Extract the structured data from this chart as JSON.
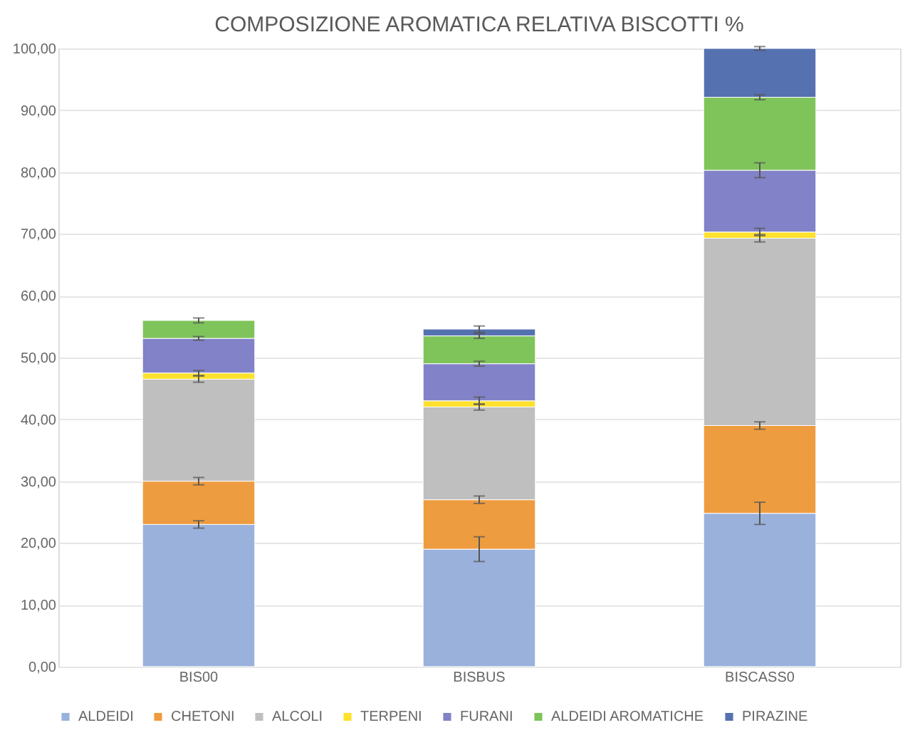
{
  "chart_data": {
    "type": "bar",
    "title": "COMPOSIZIONE AROMATICA RELATIVA BISCOTTI %",
    "stacked": true,
    "categories": [
      "BIS00",
      "BISBUS",
      "BISCASS0"
    ],
    "series": [
      {
        "name": "ALDEIDI",
        "color": "#9ab1dc",
        "values": [
          23.0,
          19.0,
          24.8
        ],
        "errors": [
          0.6,
          2.0,
          1.8
        ]
      },
      {
        "name": "CHETONI",
        "color": "#ee9c40",
        "values": [
          7.0,
          8.0,
          14.2
        ],
        "errors": [
          0.6,
          0.6,
          0.6
        ]
      },
      {
        "name": "ALCOLI",
        "color": "#bfbfbf",
        "values": [
          16.5,
          15.0,
          30.3
        ],
        "errors": [
          0.5,
          0.5,
          0.6
        ]
      },
      {
        "name": "TERPENI",
        "color": "#fde12c",
        "values": [
          1.0,
          1.0,
          1.0
        ],
        "errors": [
          0.4,
          0.6,
          0.6
        ]
      },
      {
        "name": "FURANI",
        "color": "#8282c8",
        "values": [
          5.6,
          6.0,
          10.0
        ],
        "errors": [
          0.3,
          0.4,
          1.2
        ]
      },
      {
        "name": "ALDEIDI AROMATICHE",
        "color": "#7fc45a",
        "values": [
          2.9,
          4.5,
          11.8
        ],
        "errors": [
          0.4,
          0.4,
          0.4
        ]
      },
      {
        "name": "PIRAZINE",
        "color": "#5571b0",
        "values": [
          null,
          1.1,
          7.9
        ],
        "errors": [
          null,
          0.5,
          0.3
        ]
      }
    ],
    "ylim": [
      0,
      100
    ],
    "yticks": [
      {
        "value": 0,
        "label": "0,00"
      },
      {
        "value": 10,
        "label": "10,00"
      },
      {
        "value": 20,
        "label": "20,00"
      },
      {
        "value": 30,
        "label": "30,00"
      },
      {
        "value": 40,
        "label": "40,00"
      },
      {
        "value": 50,
        "label": "50,00"
      },
      {
        "value": 60,
        "label": "60,00"
      },
      {
        "value": 70,
        "label": "70,00"
      },
      {
        "value": 80,
        "label": "80,00"
      },
      {
        "value": 90,
        "label": "90,00"
      },
      {
        "value": 100,
        "label": "100,00"
      }
    ],
    "grid": "y",
    "legend": "bottom"
  }
}
